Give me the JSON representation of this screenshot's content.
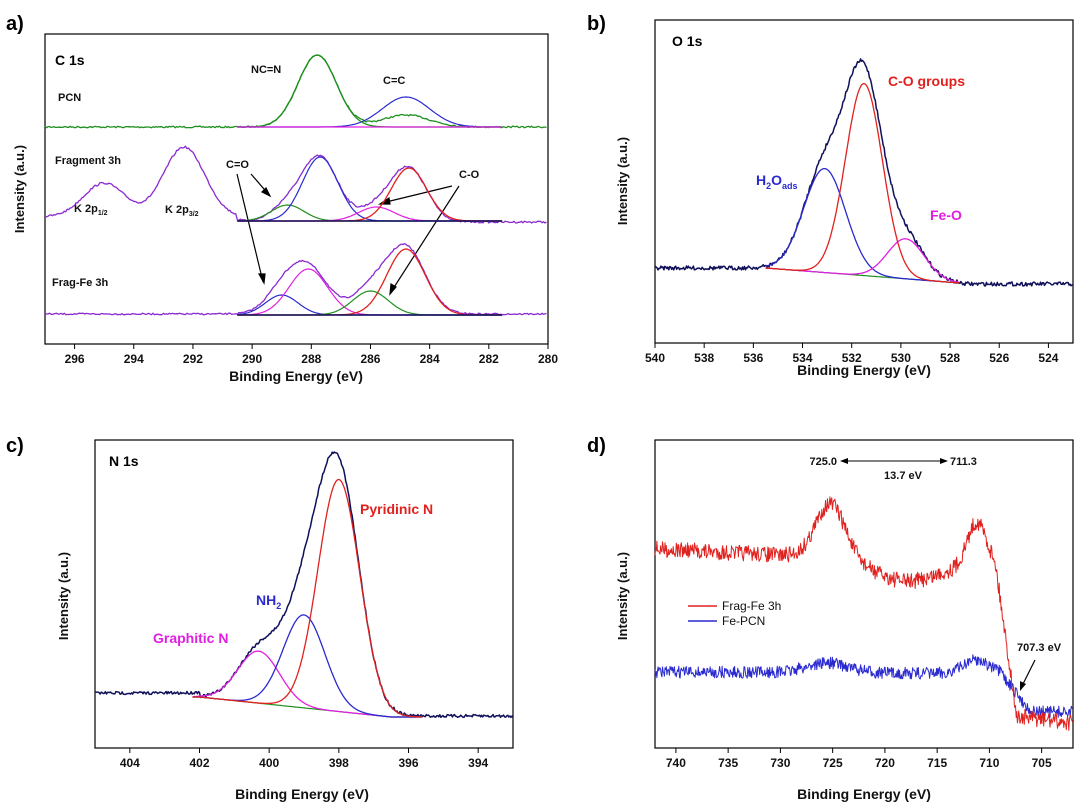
{
  "chart_data": [
    {
      "type": "line",
      "panel_label": "a)",
      "title": "C 1s",
      "xlabel": "Binding Energy (eV)",
      "ylabel": "Intensity (a.u.)",
      "xlim": [
        297,
        280
      ],
      "x_ticks": [
        296,
        294,
        292,
        290,
        288,
        286,
        284,
        282,
        280
      ],
      "sample_labels": [
        "PCN",
        "Fragment 3h",
        "Frag-Fe 3h"
      ],
      "peak_labels": [
        {
          "text": "NC=N",
          "x": 287.9
        },
        {
          "text": "C=C",
          "x": 284.6
        },
        {
          "text": "C=O",
          "x": 289.5
        },
        {
          "text": "C-O",
          "x": 284.0
        },
        {
          "text": "K 2p",
          "sub": "1/2",
          "x": 295.1
        },
        {
          "text": "K 2p",
          "sub": "3/2",
          "x": 292.3
        }
      ],
      "peaks": {
        "pcn": [
          {
            "x": 287.8,
            "height": 1.0
          },
          {
            "x": 284.8,
            "height": 0.4
          }
        ],
        "fragment_3h": [
          {
            "x": 288.8,
            "height": 0.2
          },
          {
            "x": 287.7,
            "height": 0.8
          },
          {
            "x": 285.8,
            "height": 0.2
          },
          {
            "x": 284.7,
            "height": 0.65
          },
          {
            "x": 295.0,
            "height": 0.45
          },
          {
            "x": 292.3,
            "height": 0.85
          }
        ],
        "frag_fe_3h": [
          {
            "x": 289.0,
            "height": 0.25
          },
          {
            "x": 288.1,
            "height": 0.55
          },
          {
            "x": 286.0,
            "height": 0.3
          },
          {
            "x": 284.8,
            "height": 0.75
          }
        ]
      },
      "legend": "none"
    },
    {
      "type": "line",
      "panel_label": "b)",
      "title": "O 1s",
      "xlabel": "Binding Energy (eV)",
      "ylabel": "Intensity (a.u.)",
      "xlim": [
        540,
        523
      ],
      "x_ticks": [
        540,
        538,
        536,
        534,
        532,
        530,
        528,
        526,
        524
      ],
      "components": [
        {
          "label": "C-O groups",
          "color": "#e0211e",
          "x": 531.5,
          "height": 1.0
        },
        {
          "label": "H",
          "sub": "2",
          "tail": "O",
          "sub2": "ads",
          "color": "#2a2ad0",
          "x": 533.1,
          "height": 0.55
        },
        {
          "label": "Fe-O",
          "color": "#e020e0",
          "x": 529.8,
          "height": 0.25
        }
      ],
      "legend": "none"
    },
    {
      "type": "line",
      "panel_label": "c)",
      "title": "N 1s",
      "xlabel": "Binding Energy (eV)",
      "ylabel": "Intensity (a.u.)",
      "xlim": [
        405,
        393
      ],
      "x_ticks": [
        404,
        402,
        400,
        398,
        396,
        394
      ],
      "components": [
        {
          "label": "Pyridinic N",
          "color": "#e0211e",
          "x": 398.0,
          "height": 1.0
        },
        {
          "label": "NH",
          "sub": "2",
          "color": "#2a2ad0",
          "x": 399.0,
          "height": 0.42
        },
        {
          "label": "Graphitic N",
          "color": "#e020e0",
          "x": 400.3,
          "height": 0.25
        }
      ],
      "legend": "none"
    },
    {
      "type": "line",
      "panel_label": "d)",
      "xlabel": "Binding Energy (eV)",
      "ylabel": "Intensity (a.u.)",
      "xlim": [
        742,
        702
      ],
      "x_ticks": [
        740,
        735,
        730,
        725,
        720,
        715,
        710,
        705
      ],
      "series": [
        {
          "name": "Frag-Fe 3h",
          "color": "#e0211e"
        },
        {
          "name": "Fe-PCN",
          "color": "#2a2ad0"
        }
      ],
      "annotations": [
        {
          "text": "725.0",
          "x": 725.0
        },
        {
          "text": "711.3",
          "x": 711.3
        },
        {
          "text": "13.7 eV",
          "x": 718.2
        },
        {
          "text": "707.3 eV",
          "x": 707.3
        }
      ],
      "legend": "center-left"
    }
  ]
}
